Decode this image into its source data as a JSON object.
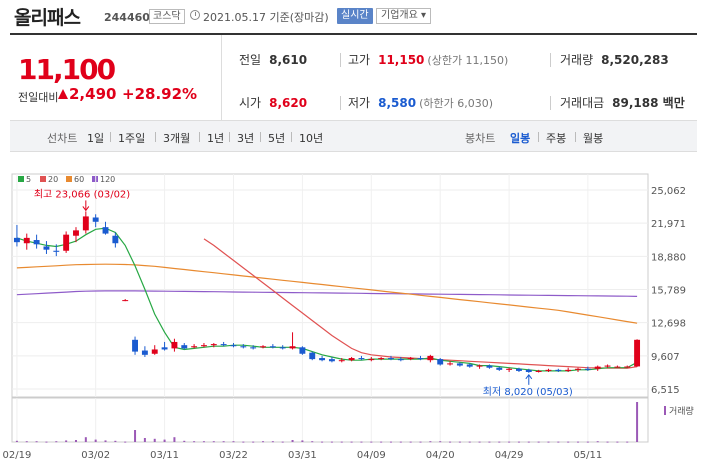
{
  "header": {
    "name": "올리패스",
    "code": "244460",
    "market": "코스닥",
    "date": "2021.05.17 기준(장마감)",
    "live_label": "실시간",
    "info_label": "기업개요 ▾"
  },
  "price": {
    "current": "11,100",
    "change_label": "전일대비",
    "change": "2,490",
    "rate": "+28.92%"
  },
  "stats": {
    "prev_close": {
      "label": "전일",
      "value": "8,610"
    },
    "open": {
      "label": "시가",
      "value": "8,620"
    },
    "high": {
      "label": "고가",
      "value": "11,150",
      "sub": "(상한가 11,150)"
    },
    "low": {
      "label": "저가",
      "value": "8,580",
      "sub": "(하한가 6,030)"
    },
    "volume": {
      "label": "거래량",
      "value": "8,520,283"
    },
    "amount": {
      "label": "거래대금",
      "value": "89,188 백만"
    }
  },
  "periods": {
    "line_label": "선차트",
    "line_items": [
      "1일",
      "1주일",
      "3개월",
      "1년",
      "3년",
      "5년",
      "10년"
    ],
    "candle_label": "봉차트",
    "candle_items": [
      "일봉",
      "주봉",
      "월봉"
    ],
    "selected": "일봉"
  },
  "legend": [
    {
      "label": "5",
      "color": "#27a844"
    },
    {
      "label": "20",
      "color": "#e05252"
    },
    {
      "label": "60",
      "color": "#e88a30"
    },
    {
      "label": "120",
      "color": "#8e5bc9"
    }
  ],
  "annotations": {
    "high": "최고 23,066 (03/02)",
    "low": "최저 8,020 (05/03)",
    "volume_label": "거래량"
  },
  "chart_data": {
    "type": "candlestick",
    "y_ticks": [
      "25,062",
      "21,971",
      "18,880",
      "15,789",
      "12,698",
      "9,607",
      "6,515"
    ],
    "ylim": [
      6515,
      25062
    ],
    "x_ticks": [
      "02/19",
      "03/02",
      "03/11",
      "03/22",
      "03/31",
      "04/09",
      "04/20",
      "04/29",
      "05/11"
    ],
    "candles": [
      {
        "o": 20600,
        "h": 21800,
        "l": 19800,
        "c": 20200
      },
      {
        "o": 20100,
        "h": 21000,
        "l": 19500,
        "c": 20600
      },
      {
        "o": 20400,
        "h": 20900,
        "l": 19600,
        "c": 20000
      },
      {
        "o": 19800,
        "h": 20300,
        "l": 19100,
        "c": 19500
      },
      {
        "o": 19400,
        "h": 20000,
        "l": 18900,
        "c": 19300
      },
      {
        "o": 19400,
        "h": 21200,
        "l": 19200,
        "c": 20900
      },
      {
        "o": 20800,
        "h": 21600,
        "l": 20200,
        "c": 21300
      },
      {
        "o": 21300,
        "h": 23066,
        "l": 21000,
        "c": 22600
      },
      {
        "o": 22500,
        "h": 22800,
        "l": 21600,
        "c": 22100
      },
      {
        "o": 21600,
        "h": 22100,
        "l": 20900,
        "c": 21000
      },
      {
        "o": 20800,
        "h": 21100,
        "l": 19700,
        "c": 20100
      },
      {
        "o": 14800,
        "h": 14900,
        "l": 14700,
        "c": 14800
      },
      {
        "o": 11100,
        "h": 11400,
        "l": 9700,
        "c": 10000
      },
      {
        "o": 10100,
        "h": 10500,
        "l": 9500,
        "c": 9700
      },
      {
        "o": 9800,
        "h": 10600,
        "l": 9700,
        "c": 10200
      },
      {
        "o": 10400,
        "h": 10900,
        "l": 10100,
        "c": 10200
      },
      {
        "o": 10300,
        "h": 11200,
        "l": 10000,
        "c": 10900
      },
      {
        "o": 10600,
        "h": 10800,
        "l": 10200,
        "c": 10300
      },
      {
        "o": 10400,
        "h": 10700,
        "l": 10300,
        "c": 10500
      },
      {
        "o": 10500,
        "h": 10800,
        "l": 10400,
        "c": 10600
      },
      {
        "o": 10600,
        "h": 10800,
        "l": 10400,
        "c": 10700
      },
      {
        "o": 10700,
        "h": 10900,
        "l": 10500,
        "c": 10600
      },
      {
        "o": 10600,
        "h": 10800,
        "l": 10400,
        "c": 10500
      },
      {
        "o": 10500,
        "h": 10700,
        "l": 10300,
        "c": 10400
      },
      {
        "o": 10400,
        "h": 10600,
        "l": 10200,
        "c": 10300
      },
      {
        "o": 10400,
        "h": 10600,
        "l": 10300,
        "c": 10500
      },
      {
        "o": 10500,
        "h": 10700,
        "l": 10300,
        "c": 10400
      },
      {
        "o": 10400,
        "h": 10600,
        "l": 10200,
        "c": 10300
      },
      {
        "o": 10300,
        "h": 11800,
        "l": 10200,
        "c": 10500
      },
      {
        "o": 10400,
        "h": 10500,
        "l": 9700,
        "c": 9800
      },
      {
        "o": 9900,
        "h": 10000,
        "l": 9200,
        "c": 9300
      },
      {
        "o": 9400,
        "h": 9600,
        "l": 9100,
        "c": 9200
      },
      {
        "o": 9300,
        "h": 9500,
        "l": 9000,
        "c": 9100
      },
      {
        "o": 9200,
        "h": 9400,
        "l": 9000,
        "c": 9200
      },
      {
        "o": 9200,
        "h": 9500,
        "l": 9100,
        "c": 9400
      },
      {
        "o": 9400,
        "h": 9600,
        "l": 9200,
        "c": 9300
      },
      {
        "o": 9300,
        "h": 9500,
        "l": 9100,
        "c": 9300
      },
      {
        "o": 9300,
        "h": 9500,
        "l": 9200,
        "c": 9400
      },
      {
        "o": 9400,
        "h": 9600,
        "l": 9200,
        "c": 9300
      },
      {
        "o": 9300,
        "h": 9500,
        "l": 9100,
        "c": 9200
      },
      {
        "o": 9300,
        "h": 9500,
        "l": 9200,
        "c": 9400
      },
      {
        "o": 9400,
        "h": 9600,
        "l": 9200,
        "c": 9300
      },
      {
        "o": 9200,
        "h": 9700,
        "l": 9000,
        "c": 9600
      },
      {
        "o": 9300,
        "h": 9400,
        "l": 8700,
        "c": 8800
      },
      {
        "o": 8900,
        "h": 9100,
        "l": 8700,
        "c": 8900
      },
      {
        "o": 8900,
        "h": 9000,
        "l": 8600,
        "c": 8700
      },
      {
        "o": 8800,
        "h": 8900,
        "l": 8500,
        "c": 8600
      },
      {
        "o": 8600,
        "h": 8800,
        "l": 8400,
        "c": 8700
      },
      {
        "o": 8700,
        "h": 8800,
        "l": 8400,
        "c": 8500
      },
      {
        "o": 8500,
        "h": 8600,
        "l": 8200,
        "c": 8300
      },
      {
        "o": 8300,
        "h": 8500,
        "l": 8100,
        "c": 8400
      },
      {
        "o": 8400,
        "h": 8500,
        "l": 8100,
        "c": 8200
      },
      {
        "o": 8300,
        "h": 8400,
        "l": 8020,
        "c": 8100
      },
      {
        "o": 8100,
        "h": 8300,
        "l": 8050,
        "c": 8200
      },
      {
        "o": 8200,
        "h": 8400,
        "l": 8100,
        "c": 8300
      },
      {
        "o": 8300,
        "h": 8400,
        "l": 8100,
        "c": 8200
      },
      {
        "o": 8200,
        "h": 8500,
        "l": 8100,
        "c": 8300
      },
      {
        "o": 8300,
        "h": 8500,
        "l": 8100,
        "c": 8400
      },
      {
        "o": 8400,
        "h": 8600,
        "l": 8200,
        "c": 8300
      },
      {
        "o": 8400,
        "h": 8700,
        "l": 8200,
        "c": 8600
      },
      {
        "o": 8600,
        "h": 8800,
        "l": 8500,
        "c": 8700
      },
      {
        "o": 8600,
        "h": 8700,
        "l": 8500,
        "c": 8600
      },
      {
        "o": 8600,
        "h": 8700,
        "l": 8500,
        "c": 8610
      },
      {
        "o": 8620,
        "h": 11150,
        "l": 8580,
        "c": 11100
      }
    ],
    "ma": {
      "5": [
        20600,
        20300,
        20100,
        19900,
        19800,
        20000,
        20300,
        20900,
        21400,
        21500,
        21100,
        19900,
        18000,
        15800,
        13500,
        11800,
        10400,
        10200,
        10300,
        10400,
        10500,
        10500,
        10600,
        10600,
        10500,
        10400,
        10400,
        10400,
        10400,
        10300,
        10000,
        9700,
        9500,
        9300,
        9200,
        9200,
        9300,
        9300,
        9300,
        9300,
        9300,
        9300,
        9400,
        9200,
        9100,
        9000,
        8900,
        8700,
        8700,
        8600,
        8500,
        8400,
        8300,
        8200,
        8200,
        8200,
        8200,
        8300,
        8300,
        8400,
        8500,
        8500,
        8500,
        9000
      ],
      "20": [
        null,
        null,
        null,
        null,
        null,
        null,
        null,
        null,
        null,
        null,
        null,
        null,
        null,
        null,
        null,
        null,
        null,
        null,
        null,
        20500,
        19900,
        19200,
        18500,
        17800,
        17100,
        16400,
        15700,
        15000,
        14300,
        13600,
        12900,
        12200,
        11500,
        10900,
        10300,
        9900,
        9700,
        9600,
        9500,
        9450,
        9400,
        9350,
        9300,
        9250,
        9200,
        9150,
        9100,
        9050,
        9000,
        8950,
        8900,
        8850,
        8800,
        8750,
        8700,
        8650,
        8600,
        8550,
        8500,
        8480,
        8460,
        8450,
        8440,
        8600
      ],
      "60": [
        17800,
        17850,
        17900,
        17950,
        18000,
        18050,
        18100,
        18120,
        18140,
        18150,
        18140,
        18120,
        18080,
        18020,
        17950,
        17850,
        17750,
        17650,
        17550,
        17450,
        17350,
        17250,
        17150,
        17050,
        16950,
        16850,
        16750,
        16650,
        16550,
        16450,
        16350,
        16250,
        16150,
        16050,
        15950,
        15850,
        15750,
        15650,
        15550,
        15450,
        15350,
        15250,
        15150,
        15050,
        14950,
        14850,
        14750,
        14650,
        14550,
        14450,
        14350,
        14250,
        14150,
        14050,
        13950,
        13850,
        13700,
        13550,
        13400,
        13250,
        13100,
        12950,
        12800,
        12650
      ],
      "120": [
        15300,
        15350,
        15400,
        15450,
        15500,
        15550,
        15600,
        15630,
        15650,
        15660,
        15660,
        15660,
        15655,
        15650,
        15640,
        15630,
        15620,
        15610,
        15600,
        15590,
        15580,
        15570,
        15560,
        15550,
        15540,
        15530,
        15520,
        15510,
        15500,
        15490,
        15480,
        15470,
        15460,
        15450,
        15440,
        15430,
        15420,
        15410,
        15400,
        15390,
        15380,
        15370,
        15360,
        15350,
        15340,
        15330,
        15320,
        15310,
        15300,
        15290,
        15280,
        15270,
        15260,
        15250,
        15240,
        15230,
        15220,
        15210,
        15200,
        15190,
        15180,
        15170,
        15160,
        15150
      ]
    },
    "volume": [
      0.03,
      0.02,
      0.02,
      0.01,
      0.02,
      0.04,
      0.05,
      0.12,
      0.06,
      0.04,
      0.03,
      0.01,
      0.3,
      0.1,
      0.08,
      0.06,
      0.12,
      0.03,
      0.02,
      0.02,
      0.02,
      0.02,
      0.02,
      0.01,
      0.01,
      0.02,
      0.02,
      0.01,
      0.05,
      0.04,
      0.02,
      0.01,
      0.01,
      0.01,
      0.01,
      0.01,
      0.01,
      0.01,
      0.01,
      0.01,
      0.01,
      0.01,
      0.02,
      0.02,
      0.01,
      0.01,
      0.01,
      0.01,
      0.01,
      0.01,
      0.01,
      0.01,
      0.01,
      0.01,
      0.01,
      0.01,
      0.01,
      0.01,
      0.01,
      0.02,
      0.01,
      0.01,
      0.01,
      1.0
    ]
  }
}
